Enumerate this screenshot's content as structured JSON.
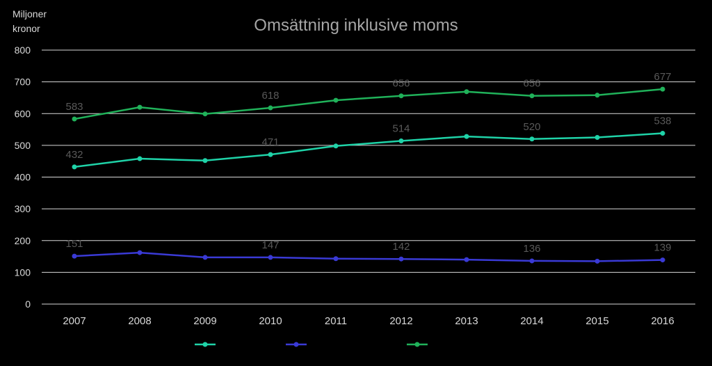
{
  "chart_data": {
    "type": "line",
    "title": "Omsättning inklusive moms",
    "ylabel_line1": "Miljoner",
    "ylabel_line2": "kronor",
    "xlabel": "",
    "ylim": [
      0,
      800
    ],
    "yticks": [
      0,
      100,
      200,
      300,
      400,
      500,
      600,
      700,
      800
    ],
    "grid": true,
    "legend_position": "bottom",
    "categories": [
      "2007",
      "2008",
      "2009",
      "2010",
      "2011",
      "2012",
      "2013",
      "2014",
      "2015",
      "2016"
    ],
    "series": [
      {
        "color": "#1fd3a8",
        "values": [
          432,
          458,
          452,
          471,
          498,
          514,
          528,
          520,
          525,
          538
        ],
        "labels": [
          "432",
          "",
          "",
          "471",
          "",
          "514",
          "",
          "520",
          "",
          "538"
        ]
      },
      {
        "color": "#3a3ad6",
        "values": [
          151,
          162,
          147,
          147,
          143,
          142,
          140,
          136,
          135,
          139
        ],
        "labels": [
          "151",
          "",
          "",
          "147",
          "",
          "142",
          "",
          "136",
          "",
          "139"
        ]
      },
      {
        "color": "#20b25a",
        "values": [
          583,
          620,
          599,
          618,
          642,
          656,
          669,
          656,
          658,
          677
        ],
        "labels": [
          "583",
          "",
          "",
          "618",
          "",
          "656",
          "",
          "656",
          "",
          "677"
        ]
      }
    ],
    "colors": {
      "background": "#000000",
      "grid": "#d9d9d9",
      "axis_text": "#d9d9d9",
      "title_text": "#a6a6a6",
      "data_label_text": "#595959"
    }
  }
}
